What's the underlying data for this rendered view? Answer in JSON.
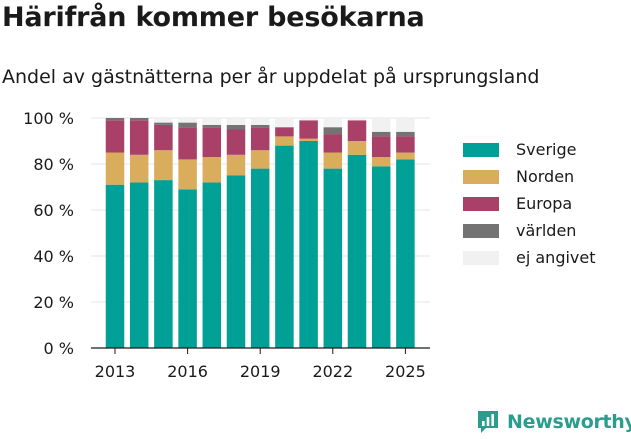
{
  "header": {
    "title": "Härifrån kommer besökarna",
    "subtitle": "Andel av gästnätterna per år uppdelat på ursprungsland"
  },
  "brand": {
    "name": "Newsworthy",
    "icon": "newsworthy-logo-icon",
    "color": "#2a9d8f"
  },
  "chart_data": {
    "type": "bar",
    "stacked": true,
    "categories": [
      "2013",
      "2014",
      "2015",
      "2016",
      "2017",
      "2018",
      "2019",
      "2020",
      "2021",
      "2022",
      "2023",
      "2024",
      "2025"
    ],
    "x_tick_labels": [
      "2013",
      "2016",
      "2019",
      "2022",
      "2025"
    ],
    "y_ticks": [
      "0 %",
      "20 %",
      "40 %",
      "60 %",
      "80 %",
      "100 %"
    ],
    "ylim": [
      0,
      100
    ],
    "grid": true,
    "legend_position": "right",
    "series": [
      {
        "name": "Sverige",
        "color": "#00a096",
        "values": [
          71,
          72,
          73,
          69,
          72,
          75,
          78,
          88,
          90,
          78,
          84,
          79,
          82
        ]
      },
      {
        "name": "Norden",
        "color": "#d9ad5c",
        "values": [
          14,
          12,
          13,
          13,
          11,
          9,
          8,
          4,
          1,
          7,
          6,
          4,
          3
        ]
      },
      {
        "name": "Europa",
        "color": "#a84068",
        "values": [
          14,
          15,
          11,
          14,
          13,
          11,
          10,
          4,
          8,
          8,
          9,
          9,
          7
        ]
      },
      {
        "name": "världen",
        "color": "#737373",
        "values": [
          1,
          1,
          1,
          2,
          1,
          2,
          1,
          0,
          0,
          3,
          0,
          2,
          2
        ]
      },
      {
        "name": "ej angivet",
        "color": "#f1f1f1",
        "values": [
          0,
          0,
          2,
          2,
          3,
          3,
          3,
          4,
          1,
          4,
          1,
          6,
          6
        ]
      }
    ]
  }
}
